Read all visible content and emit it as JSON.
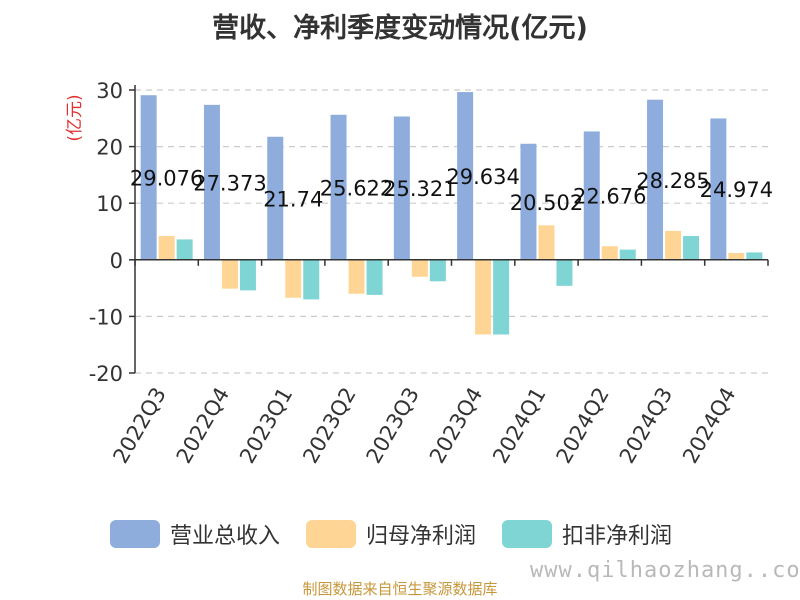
{
  "colors": {
    "revenue": "#8eacdc",
    "net_profit": "#ffd595",
    "deducted_profit": "#7fd4d4",
    "axis": "#333333",
    "grid": "#cccccc",
    "unit_label": "#e03030"
  },
  "chart_data": {
    "type": "bar",
    "title": "营收、净利季度变动情况(亿元)",
    "ylabel": "(亿元)",
    "xlabel": "",
    "ylim": [
      -20,
      30
    ],
    "yticks": [
      30,
      20,
      10,
      0,
      -10,
      -20
    ],
    "grid": true,
    "legend_position": "bottom",
    "categories": [
      "2022Q3",
      "2022Q4",
      "2023Q1",
      "2023Q2",
      "2023Q3",
      "2023Q4",
      "2024Q1",
      "2024Q2",
      "2024Q3",
      "2024Q4"
    ],
    "series": [
      {
        "name": "营业总收入",
        "color_key": "revenue",
        "values": [
          29.076,
          27.373,
          21.74,
          25.622,
          25.321,
          29.634,
          20.502,
          22.676,
          28.285,
          24.974
        ],
        "labels": [
          "29.076",
          "27.373",
          "21.74",
          "25.622",
          "25.321",
          "29.634",
          "20.502",
          "22.676",
          "28.285",
          "24.974"
        ]
      },
      {
        "name": "归母净利润",
        "color_key": "net_profit",
        "values": [
          4.2,
          -5.1,
          -6.7,
          -6.0,
          -3.0,
          -13.2,
          6.1,
          2.4,
          5.1,
          1.2
        ]
      },
      {
        "name": "扣非净利润",
        "color_key": "deducted_profit",
        "values": [
          3.6,
          -5.4,
          -7.0,
          -6.2,
          -3.8,
          -13.2,
          -4.6,
          1.8,
          4.2,
          1.3
        ]
      }
    ]
  },
  "footer": {
    "source": "制图数据来自恒生聚源数据库",
    "watermark": "www.qilhaozhang..com"
  }
}
